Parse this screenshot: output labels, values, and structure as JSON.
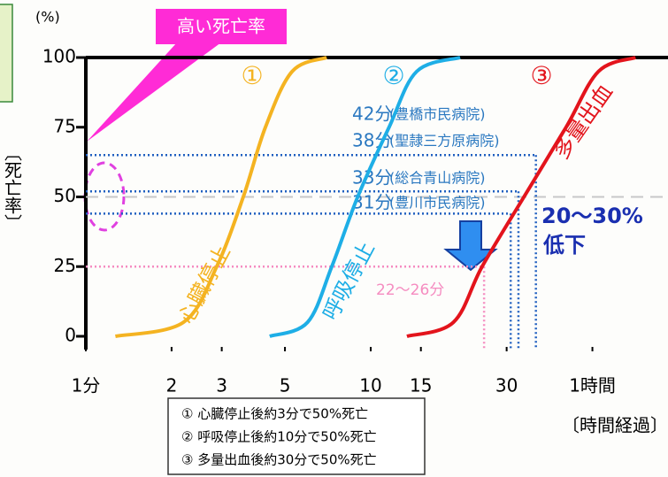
{
  "chart_data": {
    "type": "line",
    "y_unit": "(%)",
    "y_label": "〔死亡率〕",
    "x_label": "〔時間経過〕",
    "callout": "高い死亡率",
    "log_x": true,
    "xlim": [
      1,
      100
    ],
    "ylim": [
      0,
      100
    ],
    "xticks": [
      {
        "value": 1,
        "label": "1分"
      },
      2,
      3,
      5,
      10,
      15,
      30,
      {
        "value": 60,
        "label": "1時間"
      }
    ],
    "yticks": [
      0,
      25,
      50,
      75,
      100
    ],
    "series": [
      {
        "name": "心臓停止",
        "number": "①",
        "color": "#f4b321",
        "x": [
          1.27,
          2.2,
          2.88,
          3.57,
          4.27,
          5.3,
          7.0
        ],
        "values": [
          0,
          5,
          25,
          50,
          75,
          95,
          100
        ]
      },
      {
        "name": "呼吸停止",
        "number": "②",
        "color": "#1eaee6",
        "x": [
          4.42,
          6.0,
          7.3,
          9.0,
          11.6,
          14.5,
          20.6
        ],
        "values": [
          0,
          5,
          25,
          50,
          75,
          95,
          100
        ]
      },
      {
        "name": "多量出血",
        "number": "③",
        "color": "#e3141c",
        "x": [
          13.4,
          19.5,
          24.6,
          34.5,
          48.5,
          63,
          85
        ],
        "values": [
          0,
          5,
          25,
          50,
          75,
          95,
          100
        ]
      }
    ],
    "markers": [
      {
        "label": "42分",
        "note": "(豊橋市民病院)"
      },
      {
        "label": "38分",
        "note": "(聖隷三方原病院)",
        "minutes": 38,
        "rate": 65
      },
      {
        "label": "33分",
        "note": "(総合青山病院)",
        "minutes": 33,
        "rate": 52
      },
      {
        "label": "31分",
        "note": "(豊川市民病院)",
        "minutes": 31,
        "rate": 44
      }
    ],
    "pink_marker": {
      "label": "22〜26分",
      "minutes": 25,
      "rate": 25
    },
    "reduction": [
      "20〜30%",
      "低下"
    ],
    "notes": [
      "① 心臓停止後約3分で50%死亡",
      "② 呼吸停止後約10分で50%死亡",
      "③ 多量出血後約30分で50%死亡"
    ]
  }
}
